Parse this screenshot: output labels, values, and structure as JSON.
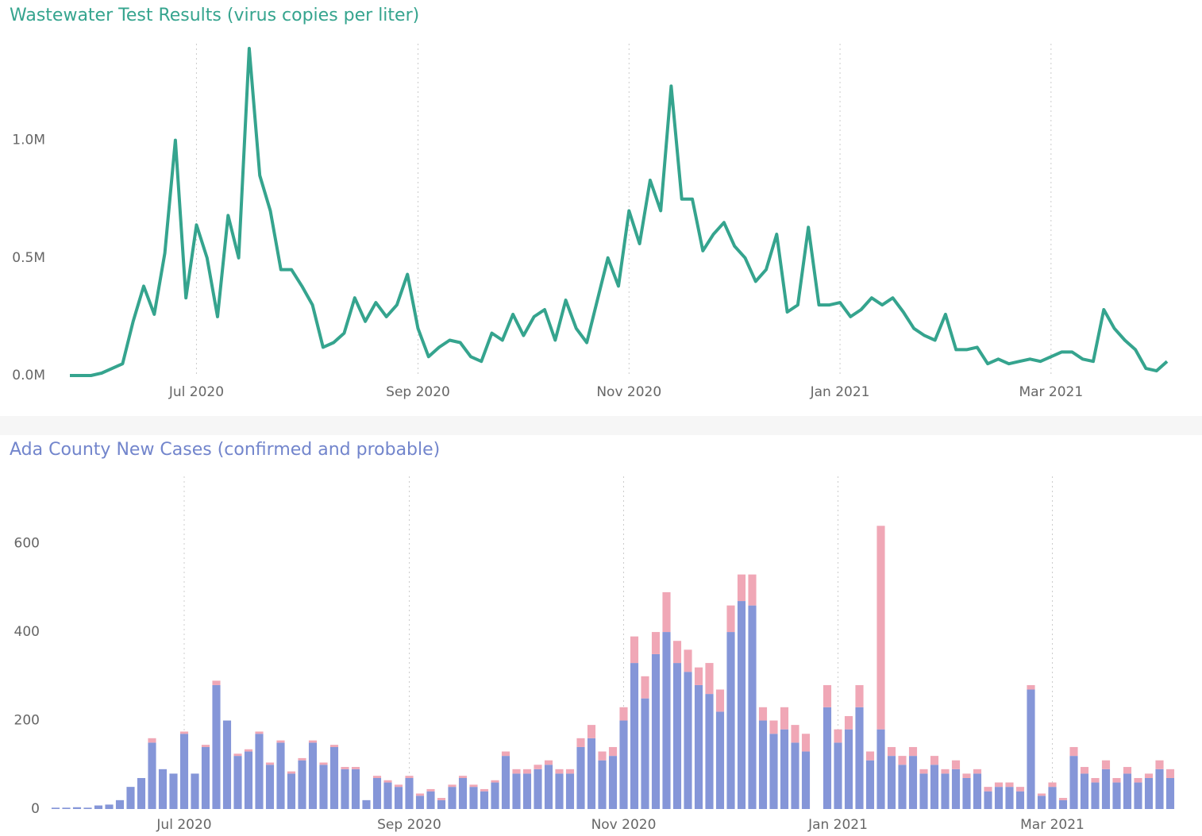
{
  "chart_data": [
    {
      "type": "line",
      "title": "Wastewater Test Results (virus copies per liter)",
      "color": "#35a48e",
      "categories": [
        null,
        null,
        null,
        null,
        null,
        null,
        null,
        null,
        null,
        null,
        null,
        null,
        "Jul 2020",
        null,
        null,
        null,
        null,
        null,
        null,
        null,
        null,
        null,
        null,
        null,
        null,
        null,
        null,
        null,
        null,
        null,
        null,
        null,
        null,
        "Sep 2020",
        null,
        null,
        null,
        null,
        null,
        null,
        null,
        null,
        null,
        null,
        null,
        null,
        null,
        null,
        null,
        null,
        null,
        null,
        null,
        "Nov 2020",
        null,
        null,
        null,
        null,
        null,
        null,
        null,
        null,
        null,
        null,
        null,
        null,
        null,
        null,
        null,
        null,
        null,
        null,
        null,
        "Jan 2021",
        null,
        null,
        null,
        null,
        null,
        null,
        null,
        null,
        null,
        null,
        null,
        null,
        null,
        null,
        null,
        null,
        null,
        null,
        null,
        "Mar 2021",
        null,
        null,
        null,
        null,
        null,
        null,
        null,
        null,
        null,
        null,
        null
      ],
      "values": [
        0,
        0,
        0,
        10000,
        30000,
        50000,
        230000,
        380000,
        260000,
        520000,
        1000000,
        330000,
        640000,
        500000,
        250000,
        680000,
        500000,
        1390000,
        850000,
        700000,
        450000,
        450000,
        380000,
        300000,
        120000,
        140000,
        180000,
        330000,
        230000,
        310000,
        250000,
        300000,
        430000,
        200000,
        80000,
        120000,
        150000,
        140000,
        80000,
        60000,
        180000,
        150000,
        260000,
        170000,
        250000,
        280000,
        150000,
        320000,
        200000,
        140000,
        320000,
        500000,
        380000,
        700000,
        560000,
        830000,
        700000,
        1230000,
        750000,
        750000,
        530000,
        600000,
        650000,
        550000,
        500000,
        400000,
        450000,
        600000,
        270000,
        300000,
        630000,
        300000,
        300000,
        310000,
        250000,
        280000,
        330000,
        300000,
        330000,
        270000,
        200000,
        170000,
        150000,
        260000,
        110000,
        110000,
        120000,
        50000,
        70000,
        50000,
        60000,
        70000,
        60000,
        80000,
        100000,
        100000,
        70000,
        60000,
        280000,
        200000,
        150000,
        110000,
        30000,
        20000,
        60000
      ],
      "ylim": [
        0,
        1400000
      ],
      "yticks": [
        {
          "value": 0,
          "label": "0.0M"
        },
        {
          "value": 500000,
          "label": "0.5M"
        },
        {
          "value": 1000000,
          "label": "1.0M"
        }
      ],
      "grid": true
    },
    {
      "type": "bar",
      "title": "Ada County New Cases (confirmed and probable)",
      "stacked": true,
      "categories": [
        null,
        null,
        null,
        null,
        null,
        null,
        null,
        null,
        null,
        null,
        null,
        null,
        "Jul 2020",
        null,
        null,
        null,
        null,
        null,
        null,
        null,
        null,
        null,
        null,
        null,
        null,
        null,
        null,
        null,
        null,
        null,
        null,
        null,
        null,
        "Sep 2020",
        null,
        null,
        null,
        null,
        null,
        null,
        null,
        null,
        null,
        null,
        null,
        null,
        null,
        null,
        null,
        null,
        null,
        null,
        null,
        "Nov 2020",
        null,
        null,
        null,
        null,
        null,
        null,
        null,
        null,
        null,
        null,
        null,
        null,
        null,
        null,
        null,
        null,
        null,
        null,
        null,
        "Jan 2021",
        null,
        null,
        null,
        null,
        null,
        null,
        null,
        null,
        null,
        null,
        null,
        null,
        null,
        null,
        null,
        null,
        null,
        null,
        null,
        "Mar 2021",
        null,
        null,
        null,
        null,
        null,
        null,
        null,
        null,
        null,
        null,
        null
      ],
      "series": [
        {
          "color": "#8596d8",
          "values": [
            3,
            3,
            4,
            3,
            8,
            10,
            20,
            50,
            70,
            150,
            90,
            80,
            170,
            80,
            140,
            280,
            200,
            120,
            130,
            170,
            100,
            150,
            80,
            110,
            150,
            100,
            140,
            90,
            90,
            20,
            70,
            60,
            50,
            70,
            30,
            40,
            20,
            50,
            70,
            50,
            40,
            60,
            120,
            80,
            80,
            90,
            100,
            80,
            80,
            140,
            160,
            110,
            120,
            200,
            330,
            250,
            350,
            400,
            330,
            310,
            280,
            260,
            220,
            400,
            470,
            460,
            200,
            170,
            180,
            150,
            130,
            null,
            230,
            150,
            180,
            230,
            110,
            180,
            120,
            100,
            120,
            80,
            100,
            80,
            90,
            70,
            80,
            40,
            50,
            50,
            40,
            270,
            30,
            50,
            20,
            120,
            80,
            60,
            90,
            60,
            80,
            60,
            70,
            90,
            70
          ]
        },
        {
          "color": "#f0a7b6",
          "values": [
            0,
            0,
            0,
            0,
            0,
            0,
            0,
            0,
            0,
            10,
            0,
            0,
            5,
            0,
            5,
            10,
            0,
            5,
            5,
            5,
            5,
            5,
            5,
            5,
            5,
            5,
            5,
            5,
            5,
            0,
            5,
            5,
            5,
            5,
            5,
            5,
            5,
            5,
            5,
            5,
            5,
            5,
            10,
            10,
            10,
            10,
            10,
            10,
            10,
            20,
            30,
            20,
            20,
            30,
            60,
            50,
            50,
            90,
            50,
            50,
            40,
            70,
            50,
            60,
            60,
            70,
            30,
            30,
            50,
            40,
            40,
            null,
            50,
            30,
            30,
            50,
            20,
            460,
            20,
            20,
            20,
            10,
            20,
            10,
            20,
            10,
            10,
            10,
            10,
            10,
            10,
            10,
            5,
            10,
            5,
            20,
            15,
            10,
            20,
            10,
            15,
            10,
            10,
            20,
            20
          ]
        }
      ],
      "ylim": [
        0,
        750
      ],
      "yticks": [
        0,
        200,
        400,
        600
      ],
      "grid": true
    }
  ]
}
